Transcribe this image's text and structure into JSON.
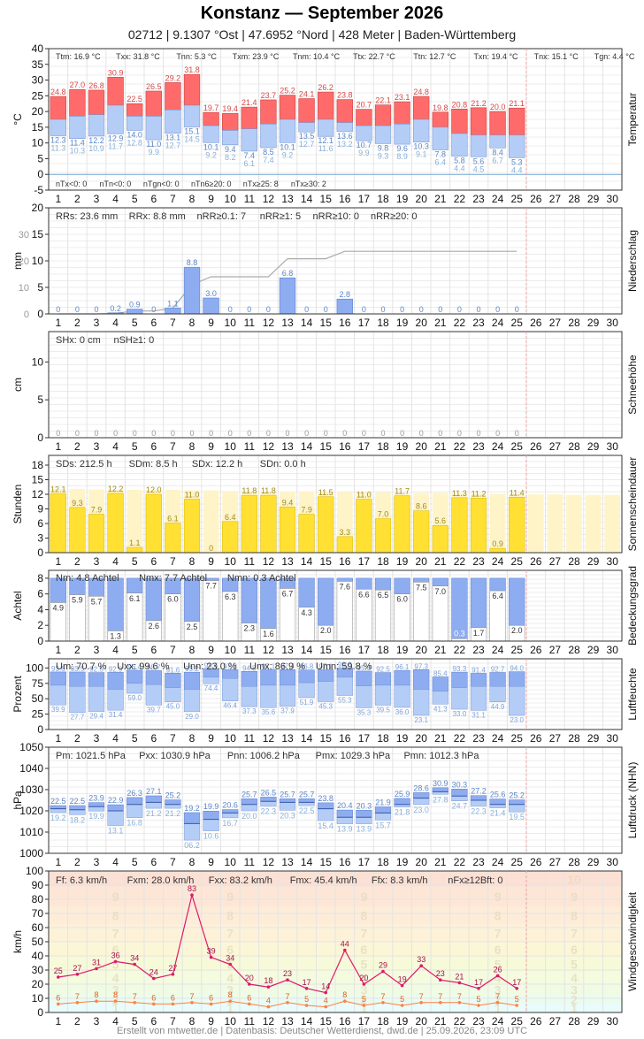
{
  "header": {
    "title": "Konstanz  —  September 2026",
    "subtitle": "02712  |  9.1307 °Ost  |  47.6952 °Nord  |  428 Meter  |  Baden-Württemberg"
  },
  "footer": "Erstellt von mtwetter.de | Datenbasis: Deutscher Wetterdienst, dwd.de | 25.09.2026, 23:09 UTC",
  "days": [
    1,
    2,
    3,
    4,
    5,
    6,
    7,
    8,
    9,
    10,
    11,
    12,
    13,
    14,
    15,
    16,
    17,
    18,
    19,
    20,
    21,
    22,
    23,
    24,
    25,
    26,
    27,
    28,
    29,
    30
  ],
  "colors": {
    "bar_blue": "#8eacf0",
    "bar_red": "#ff6b6b",
    "bar_yellow": "#ffe033",
    "grid": "#dddddd",
    "text": "#444444",
    "label_blue": "#5b87c8",
    "label_red": "#d84848",
    "wind_line": "#dd1a6a",
    "gust_line": "#ff8040"
  },
  "chart_data": [
    {
      "type": "bar",
      "id": "temp",
      "ylabel": "°C",
      "side_label": "Temperatur",
      "ylim": [
        -5,
        40
      ],
      "yticks": [
        -5,
        0,
        5,
        10,
        15,
        20,
        25,
        30,
        35,
        40
      ],
      "stats_top": [
        {
          "label": "Ttm: 16.9 °C"
        },
        {
          "label": "Txx: 31.8 °C"
        },
        {
          "label": "Tnn: 5.3 °C"
        },
        {
          "label": "Txm: 23.9 °C"
        },
        {
          "label": "Tnm: 10.4 °C"
        },
        {
          "label": "Ttx: 22.7 °C"
        },
        {
          "label": "Ttn: 12.7 °C"
        },
        {
          "label": "Txn: 19.4 °C"
        },
        {
          "label": "Tnx: 15.1 °C"
        },
        {
          "label": "Tgn: 4.4 °C"
        }
      ],
      "stats_bottom": [
        "nTx<0: 0",
        "nTn<0: 0",
        "nTgn<0: 0",
        "nTn6≥20: 0",
        "nTx≥25: 8",
        "nTx≥30: 2"
      ],
      "tmax": [
        24.8,
        27.0,
        26.8,
        30.9,
        22.5,
        26.5,
        29.2,
        31.8,
        19.7,
        19.4,
        21.4,
        23.7,
        25.2,
        24.1,
        26.2,
        23.8,
        20.7,
        22.1,
        23.1,
        24.8,
        19.8,
        20.8,
        21.2,
        20.0,
        21.1
      ],
      "tmean": [
        17.5,
        18.5,
        19.0,
        22.0,
        18.5,
        18.5,
        20.5,
        22.0,
        15.5,
        14.0,
        14.5,
        16.0,
        17.5,
        16.5,
        17.5,
        16.5,
        15.5,
        15.5,
        16.0,
        17.5,
        15.0,
        13.0,
        12.5,
        12.5,
        12.5
      ],
      "tmin": [
        12.3,
        11.4,
        12.2,
        12.9,
        14.0,
        11.0,
        13.1,
        15.1,
        10.1,
        9.4,
        7.4,
        8.5,
        10.1,
        13.5,
        12.1,
        13.6,
        10.7,
        9.8,
        9.6,
        10.3,
        7.8,
        5.8,
        5.6,
        8.4,
        5.3
      ],
      "tground": [
        11.3,
        10.3,
        10.9,
        11.7,
        12.8,
        9.9,
        12.7,
        14.5,
        9.2,
        8.2,
        6.1,
        7.4,
        9.2,
        12.7,
        11.6,
        13.2,
        9.9,
        9.3,
        8.9,
        9.1,
        6.4,
        4.4,
        4.5,
        6.7,
        4.4
      ]
    },
    {
      "type": "bar",
      "id": "precip",
      "ylabel": "mm",
      "side_label": "Niederschlag",
      "ylim": [
        0,
        20
      ],
      "yticks": [
        0,
        5,
        10,
        15,
        20
      ],
      "sum_axis_ticks": [
        0,
        10,
        20,
        30
      ],
      "stats_top": [
        "RRs: 23.6 mm",
        "RRx: 8.8 mm",
        "nRR≥0.1: 7",
        "nRR≥1: 5",
        "nRR≥10: 0",
        "nRR≥20: 0"
      ],
      "values": [
        0,
        0,
        0,
        0.2,
        0.9,
        0,
        1.1,
        8.8,
        3.0,
        0,
        0,
        0,
        6.8,
        0,
        0,
        2.8,
        0,
        0,
        0,
        0,
        0,
        0,
        0,
        0,
        0
      ],
      "labels": [
        "0",
        "0",
        "0",
        "0.2",
        "0.9",
        "0",
        "1.1",
        "8.8",
        "3.0",
        "0",
        "0",
        "0",
        "6.8",
        "0",
        "0",
        "2.8",
        "0",
        "0",
        "0",
        "0",
        "0",
        "0",
        "0",
        "0",
        "0"
      ]
    },
    {
      "type": "bar",
      "id": "snow",
      "ylabel": "cm",
      "side_label": "Schneehöhe",
      "ylim": [
        0,
        14
      ],
      "yticks": [
        0,
        5,
        10
      ],
      "stats_top": [
        "SHx: 0 cm",
        "nSH≥1: 0"
      ],
      "values": [
        0,
        0,
        0,
        0,
        0,
        0,
        0,
        0,
        0,
        0,
        0,
        0,
        0,
        0,
        0,
        0,
        0,
        0,
        0,
        0,
        0,
        0,
        0,
        0,
        0
      ],
      "labels": [
        "0",
        "0",
        "0",
        "0",
        "0",
        "0",
        "0",
        "0",
        "0",
        "0",
        "0",
        "0",
        "0",
        "0",
        "0",
        "0",
        "0",
        "0",
        "0",
        "0",
        "0",
        "0",
        "0",
        "0",
        "0"
      ]
    },
    {
      "type": "bar",
      "id": "sun",
      "ylabel": "Stunden",
      "side_label": "Sonnenscheindauer",
      "ylim": [
        0,
        20
      ],
      "yticks": [
        0,
        3,
        6,
        9,
        12,
        15,
        18
      ],
      "stats_top": [
        "SDs: 212.5 h",
        "SDm: 8.5 h",
        "SDx: 12.2 h",
        "SDn: 0.0 h"
      ],
      "values": [
        12.1,
        9.3,
        7.9,
        12.2,
        1.1,
        12.0,
        6.1,
        11.0,
        0,
        6.4,
        11.8,
        11.8,
        9.4,
        7.9,
        11.5,
        3.3,
        11.0,
        7.0,
        11.7,
        8.6,
        5.6,
        11.3,
        11.2,
        0.9,
        11.4
      ],
      "labels": [
        "12.1",
        "9.3",
        "7.9",
        "12.2",
        "1.1",
        "12.0",
        "6.1",
        "11.0",
        "0",
        "6.4",
        "11.8",
        "11.8",
        "9.4",
        "7.9",
        "11.5",
        "3.3",
        "11.0",
        "7.0",
        "11.7",
        "8.6",
        "5.6",
        "11.3",
        "11.2",
        "0.9",
        "11.4"
      ],
      "possible": [
        13.1,
        13.1,
        13.0,
        13.0,
        12.9,
        12.9,
        12.9,
        12.8,
        12.8,
        12.7,
        12.7,
        12.6,
        12.6,
        12.6,
        12.5,
        12.5,
        12.4,
        12.4,
        12.3,
        12.3,
        12.3,
        12.2,
        12.2,
        12.1,
        12.1,
        12.0,
        12.0,
        11.9,
        11.9,
        11.9
      ]
    },
    {
      "type": "bar",
      "id": "cloud",
      "ylabel": "Achtel",
      "side_label": "Bedeckungsgrad",
      "ylim": [
        0,
        9
      ],
      "yticks": [
        0,
        2,
        4,
        6,
        8
      ],
      "stats_top": [
        "Nm: 4.8 Achtel",
        "Nmx: 7.7 Achtel",
        "Nmn: 0.3 Achtel"
      ],
      "values": [
        4.9,
        5.9,
        5.7,
        1.3,
        6.1,
        2.6,
        6.0,
        2.5,
        7.7,
        6.3,
        2.3,
        1.6,
        6.7,
        4.3,
        2.0,
        7.6,
        6.6,
        6.5,
        6.0,
        7.5,
        7.0,
        0.3,
        1.7,
        6.4,
        2.0
      ],
      "labels": [
        "4.9",
        "5.9",
        "5.7",
        "1.3",
        "6.1",
        "2.6",
        "6.0",
        "2.5",
        "7.7",
        "6.3",
        "2.3",
        "1.6",
        "6.7",
        "4.3",
        "2.0",
        "7.6",
        "6.6",
        "6.5",
        "6.0",
        "7.5",
        "7.0",
        "0.3",
        "1.7",
        "6.4",
        "2.0"
      ]
    },
    {
      "type": "bar",
      "id": "humidity",
      "ylabel": "Prozent",
      "side_label": "Luftfeuchte",
      "ylim": [
        0,
        115
      ],
      "yticks": [
        0,
        25,
        50,
        75,
        100
      ],
      "stats_top": [
        "Um: 70.7 %",
        "Uxx: 99.6 %",
        "Unn: 23.0 %",
        "Umx: 86.9 %",
        "Umn: 59.8 %"
      ],
      "umax": [
        93.6,
        93.5,
        92.5,
        92.9,
        96.4,
        95.7,
        91.6,
        93.2,
        98.6,
        97.2,
        94.5,
        97.1,
        97.4,
        96.8,
        97.1,
        99.6,
        95.0,
        92.5,
        96.1,
        97.3,
        85.4,
        93.3,
        91.4,
        92.7,
        94.0
      ],
      "umean": [
        72,
        70,
        70,
        65,
        75,
        73,
        68,
        65,
        85,
        83,
        70,
        72,
        72,
        76,
        78,
        85,
        71,
        72,
        72,
        65,
        62,
        68,
        70,
        70,
        70
      ],
      "umin": [
        39.9,
        27.7,
        29.4,
        31.4,
        59.0,
        39.7,
        45.0,
        29.0,
        74.4,
        46.4,
        37.3,
        35.6,
        37.9,
        51.9,
        45.3,
        55.3,
        35.3,
        39.5,
        36.0,
        23.1,
        41.3,
        33.0,
        31.1,
        44.9,
        23.0
      ]
    },
    {
      "type": "bar",
      "id": "pressure",
      "ylabel": "hPa",
      "side_label": "Luftdruck (NHN)",
      "ylim": [
        1000,
        1050
      ],
      "yticks": [
        1000,
        1010,
        1020,
        1030,
        1040,
        1050
      ],
      "stats_top": [
        "Pm: 1021.5 hPa",
        "Pxx: 1030.9 hPa",
        "Pnn: 1006.2 hPa",
        "Pmx: 1029.3 hPa",
        "Pmn: 1012.3 hPa"
      ],
      "pmax": [
        1022.5,
        1022.5,
        1023.9,
        1022.9,
        1026.3,
        1027.1,
        1025.2,
        1019.2,
        1019.9,
        1020.6,
        1025.7,
        1026.5,
        1025.7,
        1025.7,
        1023.8,
        1020.4,
        1020.3,
        1021.9,
        1025.9,
        1028.6,
        1030.9,
        1030.3,
        1027.2,
        1025.6,
        1025.2
      ],
      "pmean": [
        1021,
        1020.5,
        1022,
        1020,
        1023,
        1024,
        1023,
        1014,
        1016,
        1019,
        1023,
        1024.5,
        1024,
        1024,
        1021,
        1017,
        1017,
        1019,
        1023,
        1026,
        1029,
        1027,
        1025,
        1023,
        1023
      ],
      "pmin": [
        1019.2,
        1018.2,
        1019.9,
        1013.1,
        1016.8,
        1021.2,
        1021.2,
        1006.2,
        1010.6,
        1016.7,
        1020.0,
        1022.3,
        1020.3,
        1022.5,
        1015.4,
        1013.9,
        1013.9,
        1015.7,
        1021.8,
        1023.0,
        1027.8,
        1024.7,
        1022.3,
        1021.4,
        1019.5
      ],
      "top_labels": [
        "22.5",
        "22.5",
        "23.9",
        "22.9",
        "26.3",
        "27.1",
        "25.2",
        "19.2",
        "19.9",
        "20.6",
        "25.7",
        "26.5",
        "25.7",
        "25.7",
        "23.8",
        "20.4",
        "20.3",
        "21.9",
        "25.9",
        "28.6",
        "30.9",
        "30.3",
        "27.2",
        "25.6",
        "25.2"
      ],
      "bottom_labels": [
        "19.2",
        "18.2",
        "19.9",
        "13.1",
        "16.8",
        "21.2",
        "21.2",
        "06.2",
        "10.6",
        "16.7",
        "20.0",
        "22.3",
        "20.3",
        "22.5",
        "15.4",
        "13.9",
        "13.9",
        "15.7",
        "21.8",
        "23.0",
        "27.8",
        "24.7",
        "22.3",
        "21.4",
        "19.5"
      ]
    },
    {
      "type": "line",
      "id": "wind",
      "ylabel": "km/h",
      "side_label": "Windgeschwindigkeit",
      "ylim": [
        0,
        100
      ],
      "yticks": [
        0,
        10,
        20,
        30,
        40,
        50,
        60,
        70,
        80,
        90,
        100
      ],
      "stats_top": [
        "Ff: 6.3 km/h",
        "Fxm: 28.0 km/h",
        "Fxx: 83.2 km/h",
        "Fmx: 45.4 km/h",
        "Ffx: 8.3 km/h",
        "nFx≥12Bft: 0"
      ],
      "bft_labels": [
        "1",
        "2",
        "3",
        "4",
        "5",
        "6",
        "7",
        "8",
        "9",
        "10"
      ],
      "series": [
        {
          "name": "Fx",
          "values": [
            25,
            27,
            31,
            36,
            34,
            24,
            27,
            83,
            39,
            34,
            20,
            18,
            23,
            17,
            14,
            44,
            20,
            29,
            19,
            33,
            23,
            21,
            17,
            26,
            17
          ]
        },
        {
          "name": "Ff",
          "values": [
            6,
            7,
            8,
            8,
            7,
            6,
            6,
            7,
            6,
            8,
            6,
            4,
            7,
            5,
            4,
            8,
            5,
            7,
            5,
            7,
            7,
            7,
            5,
            7,
            5
          ]
        }
      ]
    }
  ]
}
